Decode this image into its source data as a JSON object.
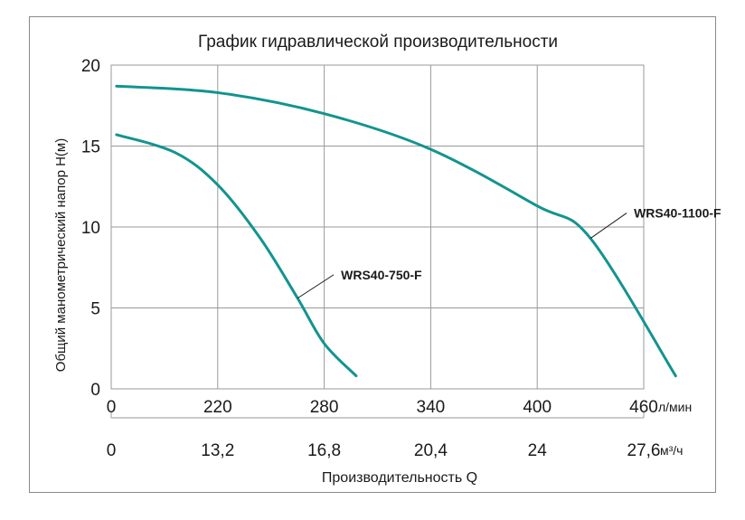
{
  "chart_data": {
    "type": "line",
    "title": "График гидравлической производительности",
    "ylabel": "Общий манометрический напор H(м)",
    "xlabel": "Производительность Q",
    "ylim": [
      0,
      20
    ],
    "y_ticks": [
      "0",
      "5",
      "10",
      "15",
      "20"
    ],
    "x_axis_primary": {
      "unit": "л/мин",
      "ticks": [
        "0",
        "220",
        "280",
        "340",
        "400",
        "460"
      ]
    },
    "x_axis_secondary": {
      "unit": "м³/ч",
      "ticks": [
        "0",
        "13,2",
        "16,8",
        "20,4",
        "24",
        "27,6"
      ]
    },
    "grid": true,
    "series": [
      {
        "name": "WRS40-750-F",
        "color": "#12948f",
        "x": [
          0.05,
          0.6,
          1.0,
          1.4,
          1.75,
          2.0,
          2.3
        ],
        "y": [
          15.7,
          14.6,
          12.6,
          9.3,
          5.6,
          2.8,
          0.8
        ]
      },
      {
        "name": "WRS40-1100-F",
        "color": "#12948f",
        "x": [
          0.05,
          1.0,
          2.0,
          3.0,
          4.0,
          4.5,
          4.5,
          5.3
        ],
        "y": [
          18.7,
          18.3,
          17.0,
          14.8,
          11.3,
          9.3,
          9.3,
          0.8
        ]
      }
    ]
  }
}
